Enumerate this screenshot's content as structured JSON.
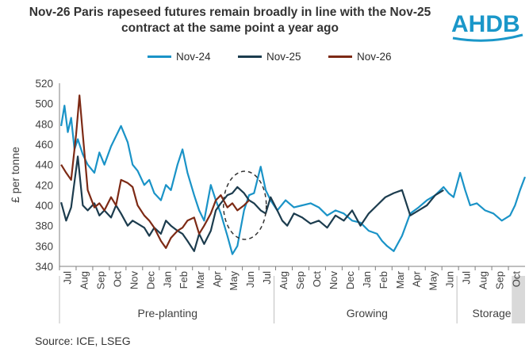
{
  "title": "Nov-26 Paris rapeseed futures remain broadly in line with the Nov-25 contract at the same point a year ago",
  "logo": {
    "text": "AHDB",
    "color": "#1a97c9"
  },
  "source": "Source: ICE, LSEG",
  "chart_data": {
    "type": "line",
    "title": "Nov-26 Paris rapeseed futures remain broadly in line with the Nov-25 contract at the same point a year ago",
    "xlabel": "",
    "ylabel": "£ per tonne",
    "ylim": [
      340,
      520
    ],
    "yticks": [
      340,
      360,
      380,
      400,
      420,
      440,
      460,
      480,
      500,
      520
    ],
    "categories": [
      "Jul",
      "Aug",
      "Sep",
      "Oct",
      "Nov",
      "Dec",
      "Jan",
      "Feb",
      "Mar",
      "Apr",
      "May",
      "Jun",
      "Jul",
      "Aug",
      "Sep",
      "Oct",
      "Nov",
      "Dec",
      "Jan",
      "Feb",
      "Mar",
      "Apr",
      "May",
      "Jun",
      "Jul",
      "Aug",
      "Sep",
      "Oct"
    ],
    "phases": [
      {
        "label": "Pre-planting",
        "start_month": 0,
        "end_month": 12
      },
      {
        "label": "Growing",
        "start_month": 13,
        "end_month": 23
      },
      {
        "label": "Storage",
        "start_month": 24,
        "end_month": 27
      }
    ],
    "grid": false,
    "legend_position": "top",
    "annotation": "dashed ellipse highlighting Nov-25 and Nov-26 prices around May-Jun",
    "series": [
      {
        "name": "Nov-24",
        "color": "#1a93c7",
        "x": [
          0,
          0.2,
          0.4,
          0.6,
          0.8,
          1,
          1.3,
          1.6,
          2,
          2.3,
          2.6,
          3,
          3.3,
          3.6,
          4,
          4.3,
          4.6,
          5,
          5.3,
          5.6,
          6,
          6.3,
          6.6,
          7,
          7.3,
          7.6,
          8,
          8.3,
          8.6,
          9,
          9.3,
          9.6,
          10,
          10.3,
          10.6,
          11,
          11.3,
          11.6,
          12,
          12.3,
          12.6,
          13,
          13.5,
          14,
          14.5,
          15,
          15.5,
          16,
          16.5,
          17,
          17.5,
          18,
          18.5,
          19,
          19.3,
          19.6,
          20,
          20.5,
          21,
          21.5,
          22,
          22.5,
          23,
          23.3,
          23.6,
          24,
          24.3,
          24.6,
          25,
          25.5,
          26,
          26.5,
          27,
          27.3,
          27.6,
          27.9
        ],
        "values": [
          478,
          498,
          472,
          486,
          455,
          465,
          450,
          440,
          432,
          452,
          440,
          458,
          468,
          478,
          462,
          440,
          434,
          420,
          425,
          412,
          405,
          420,
          415,
          440,
          455,
          432,
          410,
          395,
          385,
          420,
          405,
          392,
          370,
          352,
          360,
          395,
          410,
          412,
          438,
          415,
          405,
          395,
          405,
          398,
          400,
          402,
          398,
          390,
          395,
          392,
          385,
          383,
          375,
          372,
          365,
          360,
          355,
          370,
          392,
          398,
          405,
          410,
          418,
          412,
          408,
          432,
          415,
          400,
          402,
          395,
          392,
          385,
          390,
          400,
          415,
          428
        ]
      },
      {
        "name": "Nov-25",
        "color": "#1c3c4e",
        "x": [
          0,
          0.3,
          0.6,
          1,
          1.3,
          1.6,
          2,
          2.3,
          2.6,
          3,
          3.3,
          3.6,
          4,
          4.3,
          4.6,
          5,
          5.3,
          5.6,
          6,
          6.3,
          6.6,
          7,
          7.3,
          7.6,
          8,
          8.3,
          8.6,
          9,
          9.3,
          9.6,
          10,
          10.3,
          10.6,
          11,
          11.3,
          11.6,
          12,
          12.3,
          12.6,
          13,
          13.3,
          13.6,
          14,
          14.5,
          15,
          15.5,
          16,
          16.5,
          17,
          17.5,
          18,
          18.5,
          19,
          19.5,
          20,
          20.5,
          21,
          21.5,
          22,
          22.5,
          23
        ],
        "values": [
          403,
          385,
          398,
          448,
          400,
          395,
          402,
          390,
          395,
          388,
          400,
          392,
          380,
          385,
          382,
          378,
          370,
          378,
          372,
          385,
          380,
          375,
          372,
          365,
          355,
          372,
          362,
          375,
          395,
          402,
          410,
          412,
          418,
          412,
          405,
          402,
          395,
          392,
          408,
          395,
          385,
          380,
          392,
          388,
          382,
          385,
          378,
          390,
          385,
          395,
          380,
          392,
          400,
          408,
          412,
          415,
          390,
          395,
          400,
          410,
          415
        ]
      },
      {
        "name": "Nov-26",
        "color": "#7d2a15",
        "x": [
          0,
          0.3,
          0.6,
          0.9,
          1.1,
          1.3,
          1.6,
          2,
          2.3,
          2.6,
          3,
          3.3,
          3.6,
          4,
          4.3,
          4.6,
          5,
          5.3,
          5.6,
          6,
          6.3,
          6.6,
          7,
          7.3,
          7.6,
          8,
          8.3,
          8.6,
          9,
          9.3,
          9.6,
          10,
          10.3,
          10.6,
          11,
          11.3
        ],
        "values": [
          440,
          432,
          425,
          470,
          508,
          470,
          415,
          398,
          402,
          395,
          408,
          400,
          425,
          422,
          418,
          400,
          390,
          385,
          378,
          365,
          358,
          368,
          375,
          378,
          385,
          388,
          372,
          380,
          392,
          405,
          410,
          398,
          402,
          395,
          400,
          405
        ]
      }
    ]
  }
}
